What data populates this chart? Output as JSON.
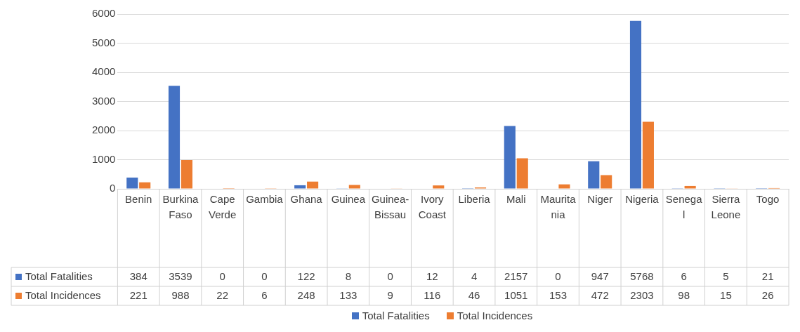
{
  "chart_data": {
    "type": "bar",
    "categories": [
      "Benin",
      "Burkina Faso",
      "Cape Verde",
      "Gambia",
      "Ghana",
      "Guinea",
      "Guinea-Bissau",
      "Ivory Coast",
      "Liberia",
      "Mali",
      "Mauritania",
      "Niger",
      "Nigeria",
      "Senegal",
      "Sierra Leone",
      "Togo"
    ],
    "series": [
      {
        "name": "Total Fatalities",
        "color": "#4472c4",
        "values": [
          384,
          3539,
          0,
          0,
          122,
          8,
          0,
          12,
          4,
          2157,
          0,
          947,
          5768,
          6,
          5,
          21
        ]
      },
      {
        "name": "Total Incidences",
        "color": "#ed7d31",
        "values": [
          221,
          988,
          22,
          6,
          248,
          133,
          9,
          116,
          46,
          1051,
          153,
          472,
          2303,
          98,
          15,
          26
        ]
      }
    ],
    "ylim": [
      0,
      6000
    ],
    "yticks": [
      0,
      1000,
      2000,
      3000,
      4000,
      5000,
      6000
    ],
    "grid": "y",
    "legend": "bottom",
    "data_labels": true
  }
}
